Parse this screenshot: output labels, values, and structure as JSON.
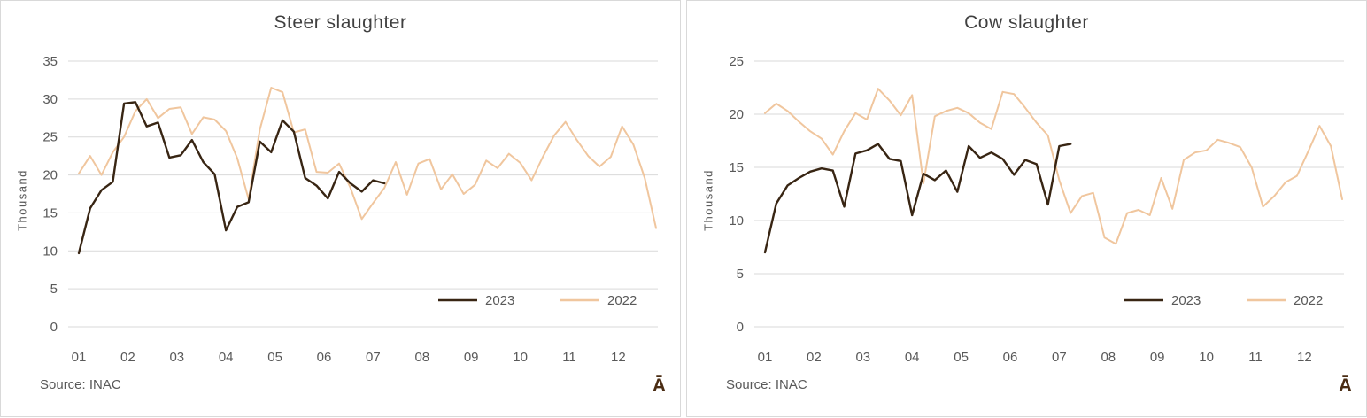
{
  "style": {
    "grid_color": "#d9d9d9",
    "axis_text_color": "#595959",
    "title_text_color": "#404040",
    "watermark_color": "#4a2c13",
    "series_2023_color": "#382513",
    "series_2022_color": "#f0c69e"
  },
  "chart_data": [
    {
      "type": "line",
      "title": "Steer slaughter",
      "ylabel": "Thousand",
      "xlabel": "",
      "source_note": "Source: INAC",
      "watermark": "Ā",
      "x_unit": "weekly data labeled by month",
      "x_tick_labels": [
        "01",
        "02",
        "03",
        "04",
        "05",
        "06",
        "07",
        "08",
        "09",
        "10",
        "11",
        "12"
      ],
      "ylim": [
        0,
        35
      ],
      "yticks": [
        0,
        5,
        10,
        15,
        20,
        25,
        30,
        35
      ],
      "grid": true,
      "legend_position": "inside-bottom-right",
      "series": [
        {
          "name": "2023",
          "color": "#382513",
          "values": [
            9.7,
            15.6,
            18.0,
            19.1,
            29.4,
            29.6,
            26.4,
            26.9,
            22.3,
            22.6,
            24.6,
            21.7,
            20.1,
            12.7,
            15.8,
            16.4,
            24.4,
            23.0,
            27.2,
            25.7,
            19.6,
            18.6,
            16.9,
            20.4,
            18.9,
            17.8,
            19.3,
            18.9
          ]
        },
        {
          "name": "2022",
          "color": "#f0c69e",
          "values": [
            20.2,
            22.5,
            20.0,
            23.0,
            25.0,
            28.4,
            30.0,
            27.5,
            28.7,
            28.9,
            25.4,
            27.6,
            27.3,
            25.8,
            22.2,
            16.8,
            26.0,
            31.5,
            30.9,
            25.6,
            26.0,
            20.4,
            20.3,
            21.5,
            18.3,
            14.2,
            16.3,
            18.3,
            21.7,
            17.4,
            21.5,
            22.1,
            18.1,
            20.1,
            17.5,
            18.7,
            21.9,
            20.9,
            22.8,
            21.6,
            19.3,
            22.4,
            25.2,
            27.0,
            24.6,
            22.5,
            21.1,
            22.4,
            26.4,
            24.0,
            19.6,
            13.0
          ]
        }
      ]
    },
    {
      "type": "line",
      "title": "Cow slaughter",
      "ylabel": "Thousand",
      "xlabel": "",
      "source_note": "Source: INAC",
      "watermark": "Ā",
      "x_unit": "weekly data labeled by month",
      "x_tick_labels": [
        "01",
        "02",
        "03",
        "04",
        "05",
        "06",
        "07",
        "08",
        "09",
        "10",
        "11",
        "12"
      ],
      "ylim": [
        0,
        25
      ],
      "yticks": [
        0,
        5,
        10,
        15,
        20,
        25
      ],
      "grid": true,
      "legend_position": "inside-bottom-right",
      "series": [
        {
          "name": "2023",
          "color": "#382513",
          "values": [
            7.0,
            11.6,
            13.3,
            14.0,
            14.6,
            14.9,
            14.7,
            11.3,
            16.3,
            16.6,
            17.2,
            15.8,
            15.6,
            10.5,
            14.4,
            13.8,
            14.7,
            12.7,
            17.0,
            15.9,
            16.4,
            15.8,
            14.3,
            15.7,
            15.3,
            11.5,
            17.0,
            17.2
          ]
        },
        {
          "name": "2022",
          "color": "#f0c69e",
          "values": [
            20.1,
            21.0,
            20.3,
            19.3,
            18.4,
            17.7,
            16.2,
            18.4,
            20.1,
            19.5,
            22.4,
            21.3,
            19.9,
            21.8,
            13.5,
            19.8,
            20.3,
            20.6,
            20.1,
            19.2,
            18.6,
            22.1,
            21.9,
            20.6,
            19.2,
            18.0,
            13.8,
            10.7,
            12.3,
            12.6,
            8.4,
            7.8,
            10.7,
            11.0,
            10.5,
            14.0,
            11.1,
            15.7,
            16.4,
            16.6,
            17.6,
            17.3,
            16.9,
            15.0,
            11.3,
            12.3,
            13.6,
            14.2,
            16.5,
            18.9,
            17.0,
            12.0
          ]
        }
      ]
    }
  ]
}
